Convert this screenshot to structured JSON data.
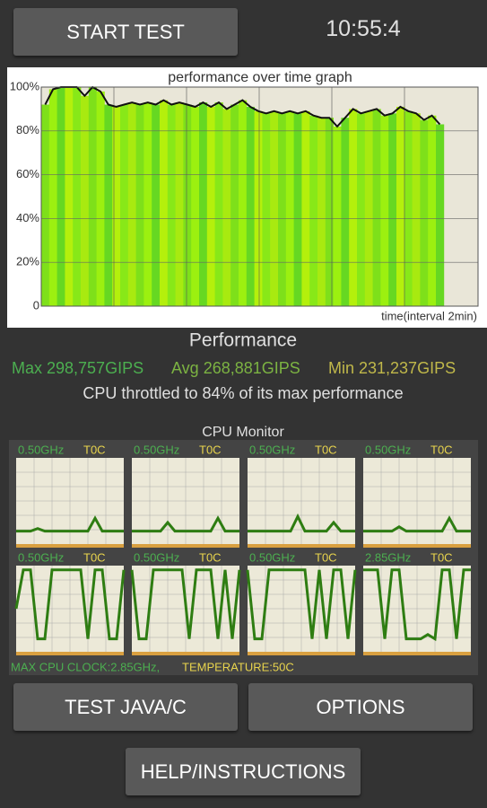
{
  "header": {
    "start_button": "START TEST",
    "clock": "10:55:4"
  },
  "chart_data": {
    "type": "line",
    "title": "performance over time graph",
    "x_label": "time(interval 2min)",
    "ylim": [
      0,
      100
    ],
    "yticks": [
      0,
      {
        "value": 20,
        "label": "20%"
      },
      {
        "value": 40,
        "label": "40%"
      },
      {
        "value": 60,
        "label": "60%"
      },
      {
        "value": 80,
        "label": "80%"
      },
      {
        "value": 100,
        "label": "100%"
      }
    ],
    "grid": true,
    "color": "#111111",
    "values": [
      92,
      99,
      100,
      100,
      100,
      96,
      100,
      98,
      92,
      91,
      92,
      93,
      92,
      93,
      92,
      94,
      92,
      93,
      92,
      91,
      93,
      91,
      93,
      90,
      92,
      94,
      91,
      89,
      88,
      89,
      88,
      89,
      88,
      89,
      87,
      86,
      86,
      82,
      86,
      90,
      88,
      89,
      90,
      87,
      88,
      91,
      89,
      88,
      85,
      87,
      83
    ]
  },
  "stats": {
    "heading": "Performance",
    "max": "Max 298,757GIPS",
    "avg": "Avg 268,881GIPS",
    "min": "Min 231,237GIPS",
    "throttle": "CPU throttled to 84% of its max performance"
  },
  "cpu_monitor": {
    "title": "CPU Monitor",
    "cores": [
      {
        "freq": "0.50GHz",
        "temp": "T0C",
        "values": [
          15,
          15,
          15,
          18,
          15,
          15,
          15,
          15,
          15,
          15,
          15,
          30,
          15,
          15,
          15,
          15
        ]
      },
      {
        "freq": "0.50GHz",
        "temp": "T0C",
        "values": [
          15,
          15,
          15,
          15,
          15,
          25,
          15,
          15,
          15,
          15,
          15,
          15,
          30,
          15,
          15,
          15
        ]
      },
      {
        "freq": "0.50GHz",
        "temp": "T0C",
        "values": [
          15,
          15,
          15,
          15,
          15,
          15,
          15,
          32,
          15,
          15,
          15,
          15,
          25,
          15,
          15,
          15
        ]
      },
      {
        "freq": "0.50GHz",
        "temp": "T0C",
        "values": [
          15,
          15,
          15,
          15,
          15,
          20,
          15,
          15,
          15,
          15,
          15,
          15,
          30,
          15,
          15,
          15
        ]
      },
      {
        "freq": "0.50GHz",
        "temp": "T0C",
        "values": [
          50,
          95,
          95,
          15,
          15,
          95,
          95,
          95,
          95,
          95,
          15,
          95,
          95,
          15,
          15,
          95
        ]
      },
      {
        "freq": "0.50GHz",
        "temp": "T0C",
        "values": [
          95,
          15,
          15,
          95,
          95,
          95,
          95,
          95,
          15,
          95,
          95,
          95,
          15,
          95,
          15,
          95
        ]
      },
      {
        "freq": "0.50GHz",
        "temp": "T0C",
        "values": [
          95,
          15,
          15,
          95,
          95,
          95,
          95,
          95,
          95,
          15,
          95,
          15,
          95,
          95,
          15,
          95
        ]
      },
      {
        "freq": "2.85GHz",
        "temp": "T0C",
        "values": [
          95,
          95,
          95,
          15,
          95,
          95,
          15,
          15,
          15,
          20,
          15,
          95,
          95,
          15,
          95,
          95
        ]
      }
    ],
    "max_clock": "MAX CPU CLOCK:2.85GHz,",
    "temperature": "TEMPERATURE:50C"
  },
  "buttons": {
    "test_java": "TEST JAVA/C",
    "options": "OPTIONS",
    "help": "HELP/INSTRUCTIONS"
  }
}
